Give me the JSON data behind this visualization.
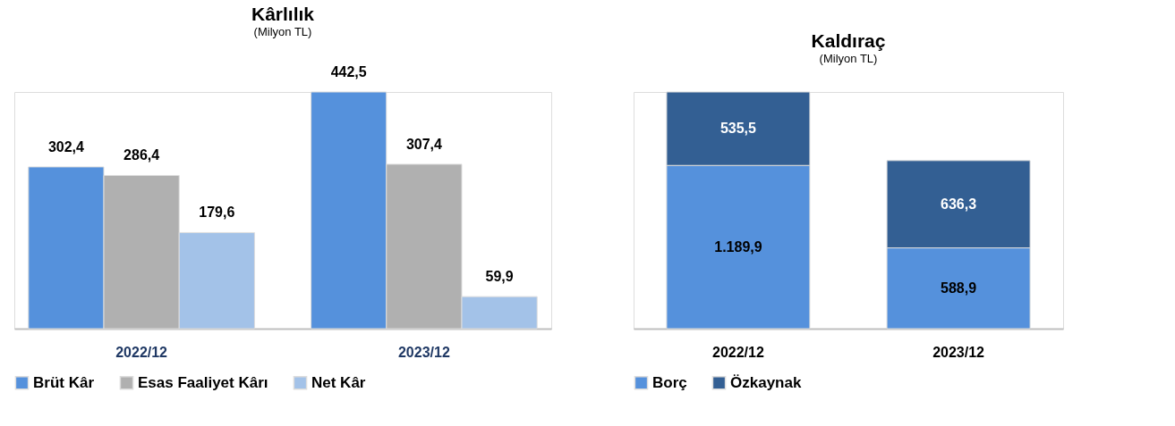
{
  "chart_data": [
    {
      "type": "bar",
      "title": "Kârlılık",
      "subtitle": "(Milyon TL)",
      "categories": [
        "2022/12",
        "2023/12"
      ],
      "legend": "bottom",
      "series": [
        {
          "name": "Brüt Kâr",
          "color": "#5591dc",
          "values": [
            302.4,
            442.5
          ],
          "value_labels": [
            "302,4",
            "442,5"
          ]
        },
        {
          "name": "Esas Faaliyet Kârı",
          "color": "#b0b0b0",
          "values": [
            286.4,
            307.4
          ],
          "value_labels": [
            "286,4",
            "307,4"
          ]
        },
        {
          "name": "Net Kâr",
          "color": "#a3c2e8",
          "values": [
            179.6,
            59.9
          ],
          "value_labels": [
            "179,6",
            "59,9"
          ]
        }
      ]
    },
    {
      "type": "bar",
      "title": "Kaldıraç",
      "subtitle": "(Milyon TL)",
      "categories": [
        "2022/12",
        "2023/12"
      ],
      "stacked": true,
      "legend": "bottom",
      "series": [
        {
          "name": "Borç",
          "color": "#5591dc",
          "values": [
            1189.9,
            588.9
          ],
          "value_labels": [
            "1.189,9",
            "588,9"
          ]
        },
        {
          "name": "Özkaynak",
          "color": "#335f93",
          "values": [
            535.5,
            636.3
          ],
          "value_labels": [
            "535,5",
            "636,3"
          ]
        }
      ]
    }
  ]
}
